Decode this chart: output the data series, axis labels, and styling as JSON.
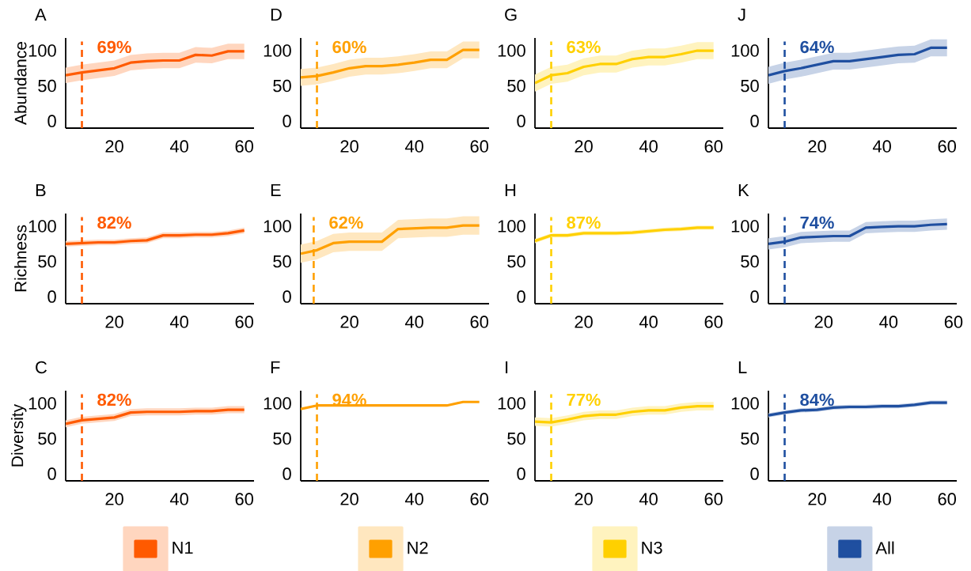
{
  "chart_data": [
    {
      "type": "line",
      "title": "A",
      "ylabel": "Abundance",
      "x": [
        5,
        10,
        15,
        20,
        25,
        30,
        35,
        40,
        45,
        50,
        55,
        60
      ],
      "xlim": [
        5,
        63
      ],
      "ylim": [
        -10,
        118
      ],
      "xticks": [
        20,
        40,
        60
      ],
      "yticks": [
        0,
        50,
        100
      ],
      "ref_lines": [
        {
          "axis": "x",
          "value": 10,
          "color": "#ff5a00",
          "line_style": "dashed"
        }
      ],
      "annotations": [
        "69%"
      ],
      "series": [
        {
          "color": "#ff5a00",
          "values": [
            65,
            69,
            72,
            75,
            83,
            85,
            86,
            86,
            94,
            93,
            99,
            99
          ],
          "lower": [
            54,
            58,
            61,
            64,
            72,
            74,
            75,
            75,
            83,
            82,
            88,
            88
          ],
          "upper": [
            76,
            80,
            83,
            86,
            94,
            96,
            97,
            97,
            105,
            104,
            110,
            110
          ]
        }
      ]
    },
    {
      "type": "line",
      "title": "D",
      "x": [
        5,
        10,
        15,
        20,
        25,
        30,
        35,
        40,
        45,
        50,
        55,
        60
      ],
      "xlim": [
        5,
        63
      ],
      "ylim": [
        -10,
        118
      ],
      "xticks": [
        20,
        40,
        60
      ],
      "yticks": [
        0,
        50,
        100
      ],
      "ref_lines": [
        {
          "axis": "x",
          "value": 10,
          "color": "#ffa000",
          "line_style": "dashed"
        }
      ],
      "annotations": [
        "60%"
      ],
      "series": [
        {
          "color": "#ffa000",
          "values": [
            62,
            64,
            69,
            75,
            78,
            78,
            80,
            83,
            87,
            87,
            101,
            101
          ],
          "lower": [
            50,
            52,
            57,
            63,
            66,
            66,
            68,
            71,
            75,
            75,
            89,
            89
          ],
          "upper": [
            74,
            76,
            81,
            87,
            90,
            90,
            92,
            95,
            99,
            99,
            113,
            113
          ]
        }
      ]
    },
    {
      "type": "line",
      "title": "G",
      "x": [
        5,
        10,
        15,
        20,
        25,
        30,
        35,
        40,
        45,
        50,
        55,
        60
      ],
      "xlim": [
        5,
        63
      ],
      "ylim": [
        -10,
        118
      ],
      "xticks": [
        20,
        40,
        60
      ],
      "yticks": [
        0,
        50,
        100
      ],
      "ref_lines": [
        {
          "axis": "x",
          "value": 10,
          "color": "#ffd000",
          "line_style": "dashed"
        }
      ],
      "annotations": [
        "63%"
      ],
      "series": [
        {
          "color": "#ffd000",
          "values": [
            54,
            65,
            68,
            77,
            81,
            81,
            88,
            91,
            91,
            95,
            100,
            100
          ],
          "lower": [
            42,
            53,
            56,
            65,
            69,
            69,
            76,
            79,
            79,
            83,
            88,
            88
          ],
          "upper": [
            66,
            77,
            80,
            89,
            93,
            93,
            100,
            103,
            103,
            107,
            112,
            112
          ]
        }
      ]
    },
    {
      "type": "line",
      "title": "J",
      "x": [
        5,
        10,
        15,
        20,
        25,
        30,
        35,
        40,
        45,
        50,
        55,
        60
      ],
      "xlim": [
        5,
        63
      ],
      "ylim": [
        -10,
        118
      ],
      "xticks": [
        20,
        40,
        60
      ],
      "yticks": [
        0,
        50,
        100
      ],
      "ref_lines": [
        {
          "axis": "x",
          "value": 10,
          "color": "#1f4fa0",
          "line_style": "dashed"
        }
      ],
      "annotations": [
        "64%"
      ],
      "series": [
        {
          "color": "#1f4fa0",
          "values": [
            65,
            71,
            75,
            80,
            85,
            85,
            88,
            91,
            94,
            95,
            104,
            104
          ],
          "lower": [
            53,
            59,
            63,
            68,
            73,
            73,
            76,
            79,
            82,
            83,
            92,
            92
          ],
          "upper": [
            77,
            83,
            87,
            92,
            97,
            97,
            100,
            103,
            106,
            107,
            116,
            116
          ]
        }
      ]
    },
    {
      "type": "line",
      "title": "B",
      "ylabel": "Richness",
      "x": [
        5,
        10,
        15,
        20,
        25,
        30,
        35,
        40,
        45,
        50,
        55,
        60
      ],
      "xlim": [
        5,
        63
      ],
      "ylim": [
        -10,
        118
      ],
      "xticks": [
        20,
        40,
        60
      ],
      "yticks": [
        0,
        50,
        100
      ],
      "ref_lines": [
        {
          "axis": "x",
          "value": 10,
          "color": "#ff5a00",
          "line_style": "dashed"
        }
      ],
      "annotations": [
        "82%"
      ],
      "series": [
        {
          "color": "#ff5a00",
          "values": [
            75,
            76,
            77,
            77,
            79,
            80,
            87,
            87,
            88,
            88,
            90,
            94
          ],
          "lower": [
            71,
            72,
            73,
            73,
            75,
            76,
            83,
            83,
            84,
            84,
            86,
            90
          ],
          "upper": [
            79,
            80,
            81,
            81,
            83,
            84,
            91,
            91,
            92,
            92,
            94,
            98
          ]
        }
      ]
    },
    {
      "type": "line",
      "title": "E",
      "x": [
        5,
        10,
        15,
        20,
        25,
        30,
        35,
        40,
        45,
        50,
        55,
        60
      ],
      "xlim": [
        5,
        63
      ],
      "ylim": [
        -10,
        118
      ],
      "xticks": [
        20,
        40,
        60
      ],
      "yticks": [
        0,
        50,
        100
      ],
      "ref_lines": [
        {
          "axis": "x",
          "value": 9,
          "color": "#ffa000",
          "line_style": "dashed"
        }
      ],
      "annotations": [
        "62%"
      ],
      "series": [
        {
          "color": "#ffa000",
          "values": [
            61,
            66,
            76,
            78,
            78,
            78,
            96,
            97,
            98,
            98,
            101,
            101
          ],
          "lower": [
            48,
            53,
            63,
            65,
            65,
            65,
            83,
            84,
            85,
            85,
            88,
            88
          ],
          "upper": [
            74,
            79,
            89,
            91,
            91,
            91,
            109,
            110,
            111,
            111,
            114,
            114
          ]
        }
      ]
    },
    {
      "type": "line",
      "title": "H",
      "x": [
        5,
        10,
        15,
        20,
        25,
        30,
        35,
        40,
        45,
        50,
        55,
        60
      ],
      "xlim": [
        5,
        63
      ],
      "ylim": [
        -10,
        118
      ],
      "xticks": [
        20,
        40,
        60
      ],
      "yticks": [
        0,
        50,
        100
      ],
      "ref_lines": [
        {
          "axis": "x",
          "value": 10,
          "color": "#ffd000",
          "line_style": "dashed"
        }
      ],
      "annotations": [
        "87%"
      ],
      "series": [
        {
          "color": "#ffd000",
          "values": [
            79,
            87,
            87,
            90,
            90,
            90,
            91,
            93,
            95,
            96,
            98,
            98
          ],
          "lower": [
            76,
            84,
            84,
            87,
            87,
            87,
            88,
            90,
            92,
            93,
            95,
            95
          ],
          "upper": [
            82,
            90,
            90,
            93,
            93,
            93,
            94,
            96,
            98,
            99,
            101,
            101
          ]
        }
      ]
    },
    {
      "type": "line",
      "title": "K",
      "x": [
        3,
        8,
        13,
        18,
        23,
        28,
        33,
        38,
        43,
        48,
        53,
        58
      ],
      "xlim": [
        3,
        61
      ],
      "ylim": [
        -10,
        118
      ],
      "xticks": [
        20,
        40,
        60
      ],
      "yticks": [
        0,
        50,
        100
      ],
      "ref_lines": [
        {
          "axis": "x",
          "value": 8,
          "color": "#1f4fa0",
          "line_style": "dashed"
        }
      ],
      "annotations": [
        "74%"
      ],
      "series": [
        {
          "color": "#1f4fa0",
          "values": [
            75,
            78,
            84,
            85,
            86,
            86,
            98,
            99,
            100,
            100,
            102,
            103
          ],
          "lower": [
            67,
            70,
            76,
            77,
            78,
            78,
            90,
            91,
            92,
            92,
            94,
            95
          ],
          "upper": [
            83,
            86,
            92,
            93,
            94,
            94,
            106,
            107,
            108,
            108,
            110,
            111
          ]
        }
      ]
    },
    {
      "type": "line",
      "title": "C",
      "ylabel": "Diversity",
      "x": [
        5,
        10,
        15,
        20,
        25,
        30,
        35,
        40,
        45,
        50,
        55,
        60
      ],
      "xlim": [
        5,
        63
      ],
      "ylim": [
        -10,
        118
      ],
      "xticks": [
        20,
        40,
        60
      ],
      "yticks": [
        0,
        50,
        100
      ],
      "ref_lines": [
        {
          "axis": "x",
          "value": 10,
          "color": "#ff5a00",
          "line_style": "dashed"
        }
      ],
      "annotations": [
        "82%"
      ],
      "legend": "bottom",
      "series": [
        {
          "name": "N1",
          "color": "#ff5a00",
          "values": [
            71,
            76,
            78,
            80,
            87,
            88,
            88,
            88,
            89,
            89,
            91,
            91
          ],
          "lower": [
            66,
            71,
            73,
            75,
            82,
            83,
            83,
            83,
            84,
            84,
            86,
            86
          ],
          "upper": [
            76,
            81,
            83,
            85,
            92,
            93,
            93,
            93,
            94,
            94,
            96,
            96
          ]
        }
      ]
    },
    {
      "type": "line",
      "title": "F",
      "x": [
        5,
        10,
        15,
        20,
        25,
        30,
        35,
        40,
        45,
        50,
        55,
        60
      ],
      "xlim": [
        5,
        63
      ],
      "ylim": [
        -10,
        118
      ],
      "xticks": [
        20,
        40,
        60
      ],
      "yticks": [
        0,
        50,
        100
      ],
      "ref_lines": [
        {
          "axis": "x",
          "value": 10,
          "color": "#ffa000",
          "line_style": "dashed"
        }
      ],
      "annotations": [
        "94%"
      ],
      "legend": "bottom",
      "series": [
        {
          "name": "N2",
          "color": "#ffa000",
          "values": [
            92,
            97,
            97,
            97,
            97,
            97,
            97,
            97,
            97,
            97,
            102,
            102
          ]
        }
      ]
    },
    {
      "type": "line",
      "title": "I",
      "x": [
        5,
        10,
        15,
        20,
        25,
        30,
        35,
        40,
        45,
        50,
        55,
        60
      ],
      "xlim": [
        5,
        63
      ],
      "ylim": [
        -10,
        118
      ],
      "xticks": [
        20,
        40,
        60
      ],
      "yticks": [
        0,
        50,
        100
      ],
      "ref_lines": [
        {
          "axis": "x",
          "value": 10,
          "color": "#ffd000",
          "line_style": "dashed"
        }
      ],
      "annotations": [
        "77%"
      ],
      "legend": "bottom",
      "series": [
        {
          "name": "N3",
          "color": "#ffd000",
          "values": [
            74,
            73,
            77,
            82,
            84,
            84,
            88,
            90,
            90,
            94,
            96,
            96
          ],
          "lower": [
            68,
            67,
            71,
            76,
            78,
            78,
            82,
            84,
            84,
            88,
            90,
            90
          ],
          "upper": [
            80,
            79,
            83,
            88,
            90,
            90,
            94,
            96,
            96,
            100,
            102,
            102
          ]
        }
      ]
    },
    {
      "type": "line",
      "title": "L",
      "x": [
        5,
        10,
        15,
        20,
        25,
        30,
        35,
        40,
        45,
        50,
        55,
        60
      ],
      "xlim": [
        5,
        63
      ],
      "ylim": [
        -10,
        118
      ],
      "xticks": [
        20,
        40,
        60
      ],
      "yticks": [
        0,
        50,
        100
      ],
      "ref_lines": [
        {
          "axis": "x",
          "value": 10,
          "color": "#1f4fa0",
          "line_style": "dashed"
        }
      ],
      "annotations": [
        "84%"
      ],
      "legend": "bottom",
      "series": [
        {
          "name": "All",
          "color": "#1f4fa0",
          "values": [
            83,
            87,
            90,
            91,
            94,
            95,
            95,
            96,
            96,
            98,
            101,
            101
          ],
          "lower": [
            80,
            84,
            87,
            88,
            91,
            92,
            92,
            93,
            93,
            95,
            98,
            98
          ],
          "upper": [
            86,
            90,
            93,
            94,
            97,
            98,
            98,
            99,
            99,
            101,
            104,
            104
          ]
        }
      ]
    }
  ]
}
